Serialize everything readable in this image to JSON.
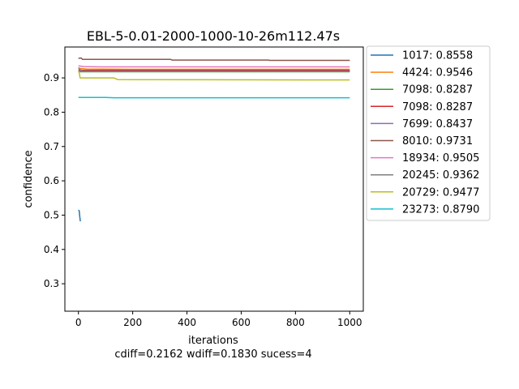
{
  "chart_data": {
    "type": "line",
    "title": "EBL-5-0.01-2000-1000-10-26m112.47s",
    "xlabel": "iterations",
    "ylabel": "confidence",
    "subtitle": "cdiff=0.2162 wdiff=0.1830 sucess=4",
    "xlim": [
      -50,
      1050
    ],
    "ylim": [
      0.22,
      0.99
    ],
    "xticks": [
      0,
      200,
      400,
      600,
      800,
      1000
    ],
    "yticks": [
      0.3,
      0.4,
      0.5,
      0.6,
      0.7,
      0.8,
      0.9
    ],
    "grid": false,
    "legend_placement": "outside-right",
    "series": [
      {
        "name": "1017: 0.8558",
        "color": "#1f77b4",
        "points": [
          [
            0,
            0.515
          ],
          [
            3,
            0.512
          ],
          [
            5,
            0.495
          ],
          [
            7,
            0.482
          ]
        ]
      },
      {
        "name": "4424: 0.9546",
        "color": "#ff7f0e",
        "points": [
          [
            0,
            0.928
          ],
          [
            30,
            0.926
          ],
          [
            200,
            0.925
          ],
          [
            1000,
            0.925
          ]
        ]
      },
      {
        "name": "7098: 0.8287",
        "color": "#2ca02c",
        "points": [
          [
            0,
            0.918
          ],
          [
            20,
            0.918
          ],
          [
            1000,
            0.918
          ]
        ]
      },
      {
        "name": "7098: 0.8287",
        "color": "#d62728",
        "points": [
          [
            0,
            0.923
          ],
          [
            20,
            0.922
          ],
          [
            1000,
            0.922
          ]
        ]
      },
      {
        "name": "7699: 0.8437",
        "color": "#9467bd",
        "points": [
          [
            0,
            0.92
          ],
          [
            20,
            0.919
          ],
          [
            1000,
            0.919
          ]
        ]
      },
      {
        "name": "8010: 0.9731",
        "color": "#8c564b",
        "points": [
          [
            0,
            0.957
          ],
          [
            10,
            0.958
          ],
          [
            15,
            0.954
          ],
          [
            340,
            0.954
          ],
          [
            345,
            0.952
          ],
          [
            700,
            0.952
          ],
          [
            705,
            0.951
          ],
          [
            1000,
            0.951
          ]
        ]
      },
      {
        "name": "18934: 0.9505",
        "color": "#e377c2",
        "points": [
          [
            0,
            0.935
          ],
          [
            20,
            0.933
          ],
          [
            80,
            0.932
          ],
          [
            1000,
            0.932
          ]
        ]
      },
      {
        "name": "20245: 0.9362",
        "color": "#7f7f7f",
        "points": [
          [
            0,
            0.93
          ],
          [
            5,
            0.925
          ],
          [
            15,
            0.92
          ],
          [
            60,
            0.919
          ],
          [
            1000,
            0.919
          ]
        ]
      },
      {
        "name": "20729: 0.9477",
        "color": "#bcbd22",
        "points": [
          [
            0,
            0.92
          ],
          [
            3,
            0.915
          ],
          [
            6,
            0.9
          ],
          [
            130,
            0.9
          ],
          [
            145,
            0.895
          ],
          [
            1000,
            0.894
          ]
        ]
      },
      {
        "name": "23273: 0.8790",
        "color": "#17becf",
        "points": [
          [
            0,
            0.843
          ],
          [
            100,
            0.843
          ],
          [
            130,
            0.842
          ],
          [
            1000,
            0.842
          ]
        ]
      }
    ]
  }
}
